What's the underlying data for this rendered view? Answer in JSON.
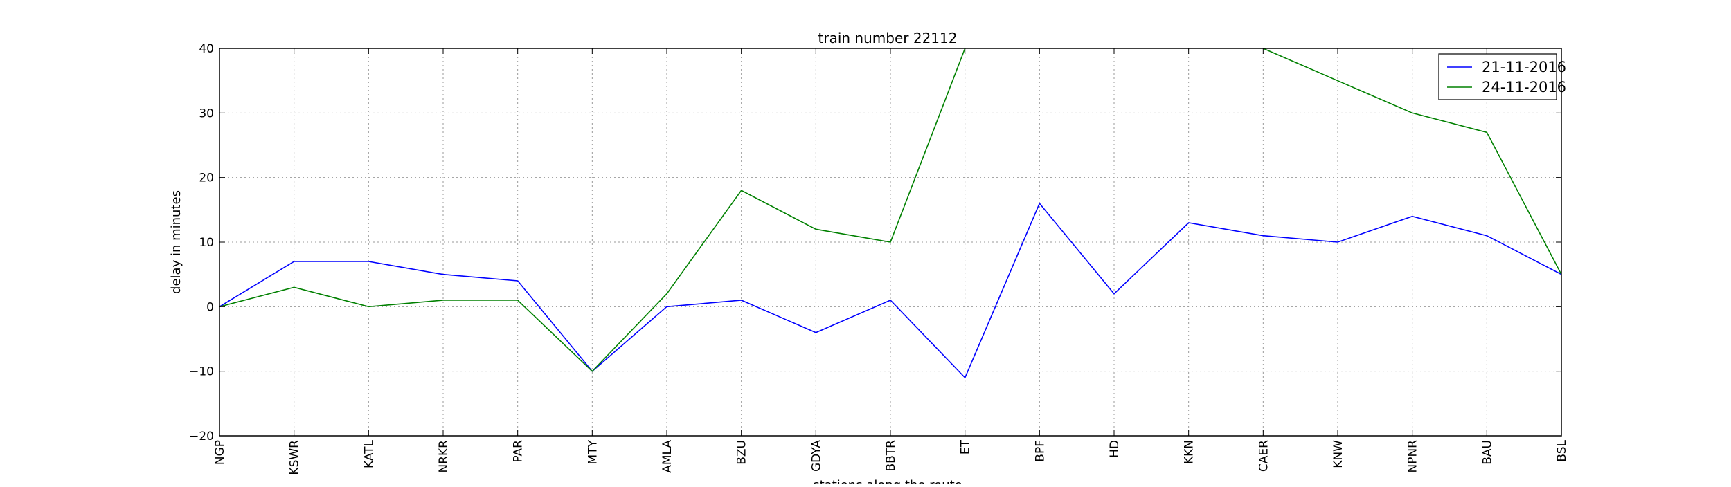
{
  "chart_data": {
    "type": "line",
    "title": "train number 22112",
    "xlabel": "stations along the route",
    "ylabel": "delay in minutes",
    "categories": [
      "NGP",
      "KSWR",
      "KATL",
      "NRKR",
      "PAR",
      "MTY",
      "AMLA",
      "BZU",
      "GDYA",
      "BBTR",
      "ET",
      "BPF",
      "HD",
      "KKN",
      "CAER",
      "KNW",
      "NPNR",
      "BAU",
      "BSL"
    ],
    "ylim": [
      -20,
      40
    ],
    "yticks": [
      -20,
      -10,
      0,
      10,
      20,
      30,
      40
    ],
    "ytick_labels": [
      "−20",
      "−10",
      "0",
      "10",
      "20",
      "30",
      "40"
    ],
    "grid": true,
    "legend_position": "top-right",
    "series": [
      {
        "name": "21-11-2016",
        "color": "#0000ff",
        "values": [
          0,
          7,
          7,
          5,
          4,
          -10,
          0,
          1,
          -4,
          1,
          -11,
          16,
          2,
          13,
          11,
          10,
          14,
          11,
          5
        ]
      },
      {
        "name": "24-11-2016",
        "color": "#008000",
        "values": [
          0,
          3,
          0,
          1,
          1,
          -10,
          2,
          18,
          12,
          10,
          40,
          null,
          null,
          null,
          40,
          35,
          30,
          27,
          5
        ]
      }
    ]
  }
}
